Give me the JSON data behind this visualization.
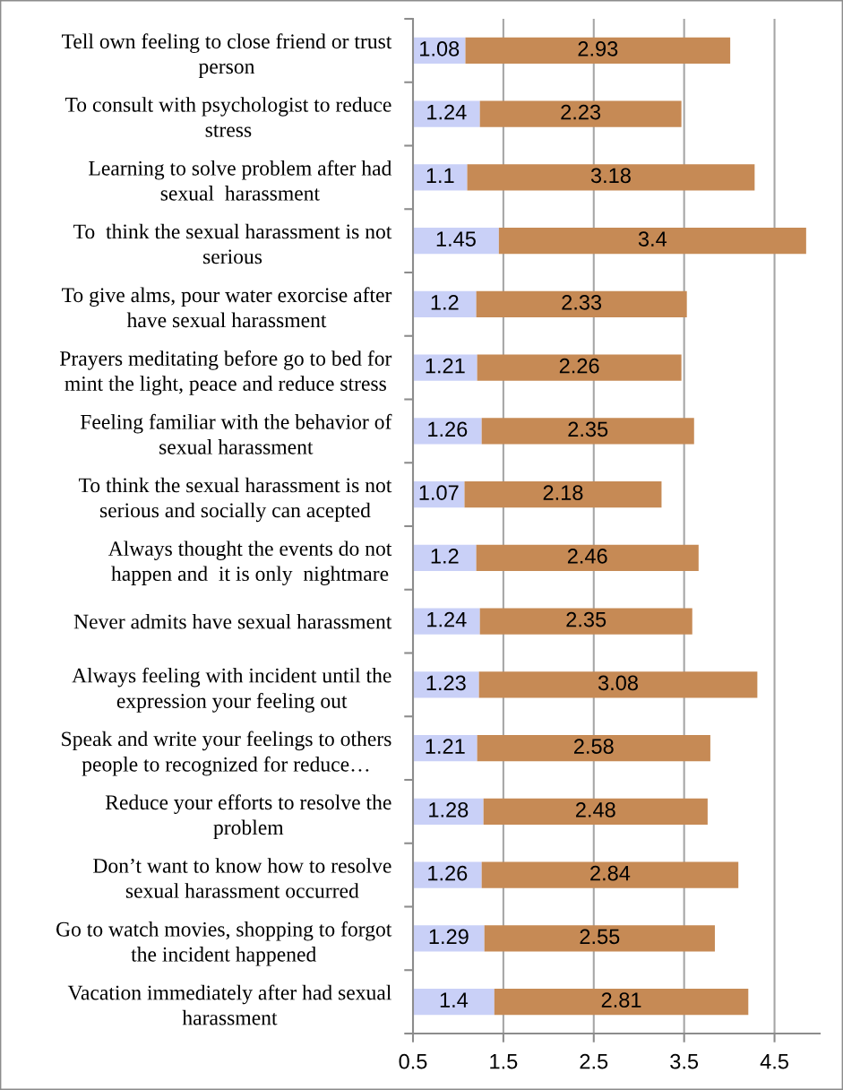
{
  "chart_data": {
    "type": "bar",
    "orientation": "horizontal",
    "stacked": true,
    "categories": [
      "Tell own feeling to close friend or trust\nperson",
      "To consult with psychologist to reduce\nstress",
      "Learning to solve problem after had\nsexual  harassment",
      "To  think the sexual harassment is not\nserious",
      "To give alms, pour water exorcise after\nhave sexual harassment",
      "Prayers meditating before go to bed for\nmint the light, peace and reduce stress",
      "Feeling familiar with the behavior of\nsexual harassment",
      "To think the sexual harassment is not\nserious and socially can acepted",
      "Always thought the events do not\nhappen and  it is only  nightmare",
      "Never admits have sexual harassment",
      "Always feeling with incident until the\nexpression your feeling out",
      "Speak and write your feelings to others\npeople to recognized for reduce…",
      "Reduce your efforts to resolve the\nproblem",
      "Don’t want to know how to resolve\nsexual harassment occurred",
      "Go to watch movies, shopping to forgot\nthe incident happened",
      "Vacation immediately after had sexual\nharassment"
    ],
    "series": [
      {
        "color": "#c9d0f7",
        "values": [
          1.08,
          1.24,
          1.1,
          1.45,
          1.2,
          1.21,
          1.26,
          1.07,
          1.2,
          1.24,
          1.23,
          1.21,
          1.28,
          1.26,
          1.29,
          1.4
        ]
      },
      {
        "color": "#c68a55",
        "values": [
          2.93,
          2.23,
          3.18,
          3.4,
          2.33,
          2.26,
          2.35,
          2.18,
          2.46,
          2.35,
          3.08,
          2.58,
          2.48,
          2.84,
          2.55,
          2.81
        ]
      }
    ],
    "xlim": [
      0.5,
      5.0
    ],
    "xticks": [
      0.5,
      1.5,
      2.5,
      3.5,
      4.5
    ],
    "grid": "x",
    "data_labels": true
  }
}
